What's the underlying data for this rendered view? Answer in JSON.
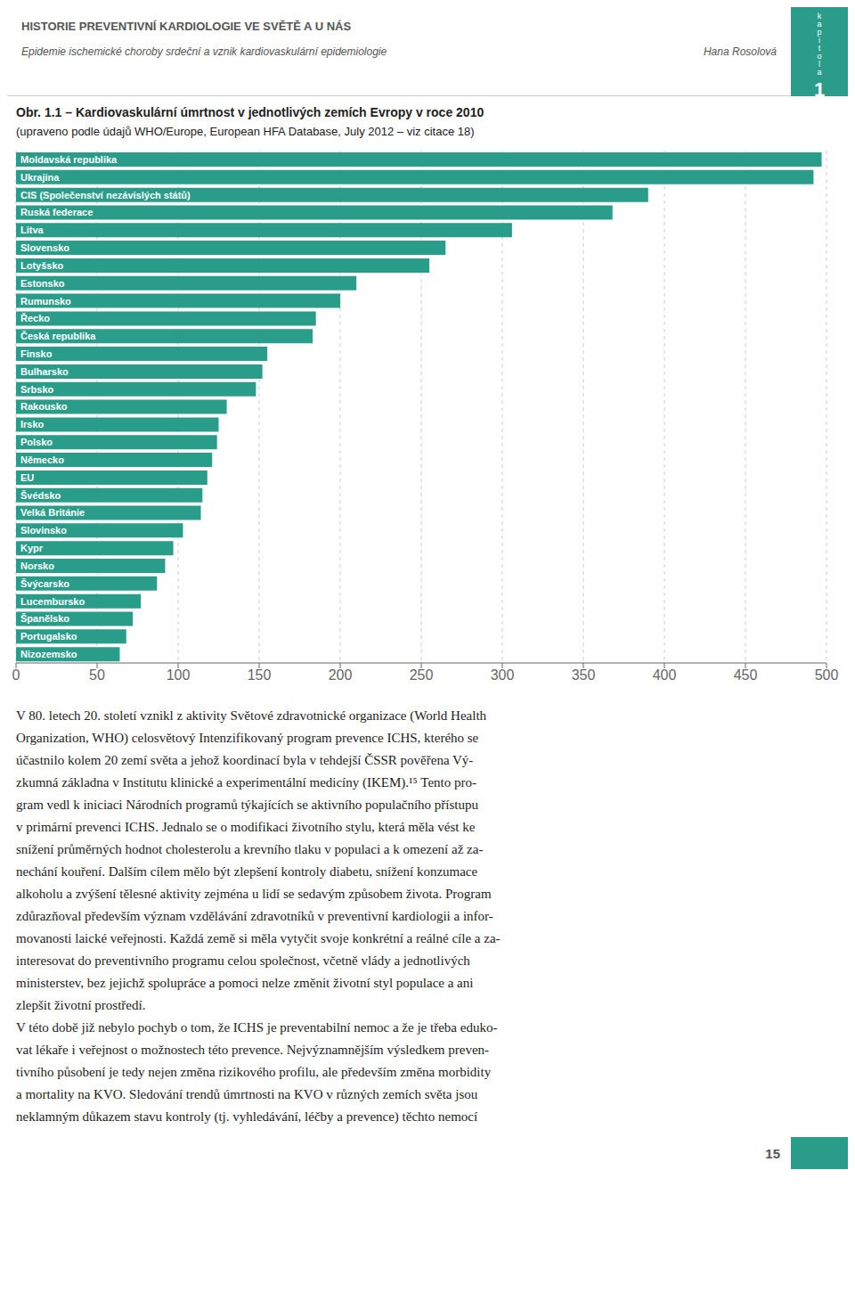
{
  "chart_data": {
    "type": "bar",
    "orientation": "horizontal",
    "title": "Obr. 1.1 – Kardiovaskulární úmrtnost v jednotlivých zemích Evropy v roce 2010",
    "subtitle": "(upraveno podle údajů WHO/Europe, European HFA Database, July 2012 – viz citace 18)",
    "categories": [
      "Moldavská republika",
      "Ukrajina",
      "CIS (Společenství nezávislých států)",
      "Ruská federace",
      "Litva",
      "Slovensko",
      "Lotyšsko",
      "Estonsko",
      "Rumunsko",
      "Řecko",
      "Česká republika",
      "Finsko",
      "Bulharsko",
      "Srbsko",
      "Rakousko",
      "Irsko",
      "Polsko",
      "Německo",
      "EU",
      "Švédsko",
      "Velká Británie",
      "Slovinsko",
      "Kypr",
      "Norsko",
      "Švýcarsko",
      "Lucembursko",
      "Španělsko",
      "Portugalsko",
      "Nizozemsko"
    ],
    "values": [
      497,
      492,
      390,
      368,
      306,
      265,
      255,
      210,
      200,
      185,
      183,
      155,
      152,
      148,
      130,
      125,
      124,
      121,
      118,
      115,
      114,
      103,
      97,
      92,
      87,
      77,
      72,
      68,
      64
    ],
    "color": "#2a9d8a",
    "xlim": [
      0,
      500
    ],
    "xticks": [
      0,
      50,
      100,
      150,
      200,
      250,
      300,
      350,
      400,
      450,
      500
    ],
    "grid": true,
    "data_labels": false,
    "annotations": [
      "HISTORIE PREVENTIVNÍ KARDIOLOGIE VE SVĚTĚ A U NÁS",
      "Epidemie ischemické choroby srdeční a vznik kardiovaskulární epidemiologie",
      "Hana Rosolová",
      "kapitola",
      "1",
      "V 80. letech 20. století vznikl z aktivity Světové zdravotnické organizace (World Health",
      "Organization, WHO) celosvětový Intenzifikovaný program prevence ICHS, kterého se",
      "účastnilo kolem 20 zemí světa a jehož koordinací byla v tehdejší ČSSR pověřena Vý-",
      "zkumná základna v Institutu klinické a experimentální medicíny (IKEM).¹⁵ Tento pro-",
      "gram vedl k iniciaci Národních programů týkajících se aktivního populačního přístupu",
      "v primární prevenci ICHS. Jednalo se o modifikaci životního stylu, která měla vést ke",
      "snížení průměrných hodnot cholesterolu a krevního tlaku v populaci a k omezení až za-",
      "nechání kouření. Dalším cílem mělo být zlepšení kontroly diabetu, snížení konzumace",
      "alkoholu a zvýšení tělesné aktivity zejména u lidí se sedavým způsobem života. Program",
      "zdůrazňoval především význam vzdělávání zdravotníků v preventivní kardiologii a infor-",
      "movanosti laické veřejnosti. Každá země si měla vytyčit svoje konkrétní a reálné cíle a za-",
      "interesovat do preventivního programu celou společnost, včetně vlády a jednotlivých",
      "ministerstev, bez jejichž spolupráce a pomoci nelze změnit životní styl populace a ani",
      "zlepšit životní prostředí.",
      "V této době již nebylo pochyb o tom, že ICHS je preventabilní nemoc a že je třeba eduko-",
      "vat lékaře i veřejnost o možnostech této prevence. Nejvýznamnějším výsledkem preven-",
      "tivního působení je tedy nejen změna rizikového profilu, ale především změna morbidity",
      "a mortality na KVO. Sledování trendů úmrtnosti na KVO v různých zemích světa jsou",
      "neklamným důkazem stavu kontroly (tj. vyhledávání, léčby a prevence) těchto nemocí",
      "15"
    ]
  }
}
